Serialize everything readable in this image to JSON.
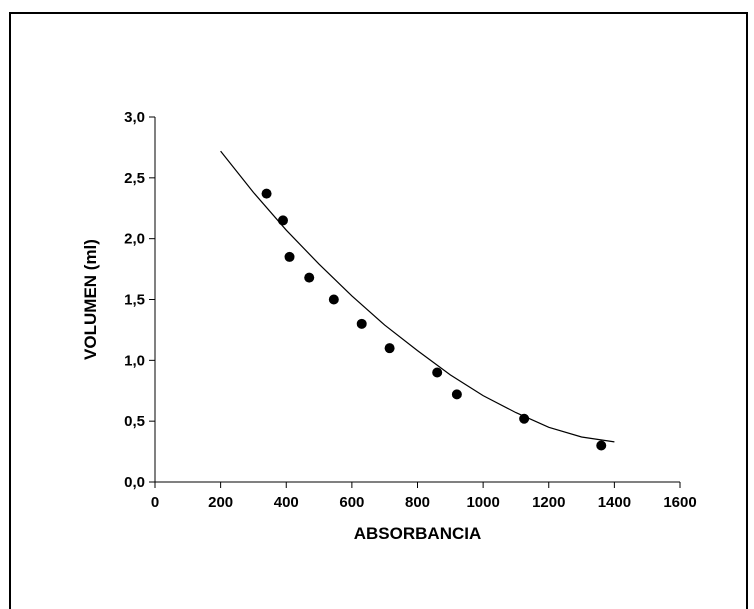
{
  "chart_data": {
    "type": "scatter",
    "xlabel": "ABSORBANCIA",
    "ylabel": "VOLUMEN (ml)",
    "xlim": [
      0,
      1600
    ],
    "ylim": [
      0,
      3.0
    ],
    "xticks": [
      0,
      200,
      400,
      600,
      800,
      1000,
      1200,
      1400,
      1600
    ],
    "yticks": [
      0,
      0.5,
      1.0,
      1.5,
      2.0,
      2.5,
      3.0
    ],
    "xtick_labels": [
      "0",
      "200",
      "400",
      "600",
      "800",
      "1000",
      "1200",
      "1400",
      "1600"
    ],
    "ytick_labels": [
      "0,0",
      "0,5",
      "1,0",
      "1,5",
      "2,0",
      "2,5",
      "3,0"
    ],
    "grid": false,
    "series": [
      {
        "type": "scatter",
        "points": [
          [
            340,
            2.37
          ],
          [
            390,
            2.15
          ],
          [
            410,
            1.85
          ],
          [
            470,
            1.68
          ],
          [
            545,
            1.5
          ],
          [
            630,
            1.3
          ],
          [
            715,
            1.1
          ],
          [
            860,
            0.9
          ],
          [
            920,
            0.72
          ],
          [
            1125,
            0.52
          ],
          [
            1360,
            0.3
          ]
        ]
      },
      {
        "type": "line",
        "style": "polynomial-fit",
        "points": [
          [
            200,
            2.72
          ],
          [
            300,
            2.38
          ],
          [
            400,
            2.07
          ],
          [
            500,
            1.79
          ],
          [
            600,
            1.53
          ],
          [
            700,
            1.29
          ],
          [
            800,
            1.08
          ],
          [
            900,
            0.88
          ],
          [
            1000,
            0.71
          ],
          [
            1100,
            0.57
          ],
          [
            1200,
            0.45
          ],
          [
            1300,
            0.37
          ],
          [
            1400,
            0.33
          ]
        ]
      }
    ],
    "colors": {
      "marker": "#000000",
      "line": "#000000",
      "axis": "#000000"
    }
  }
}
